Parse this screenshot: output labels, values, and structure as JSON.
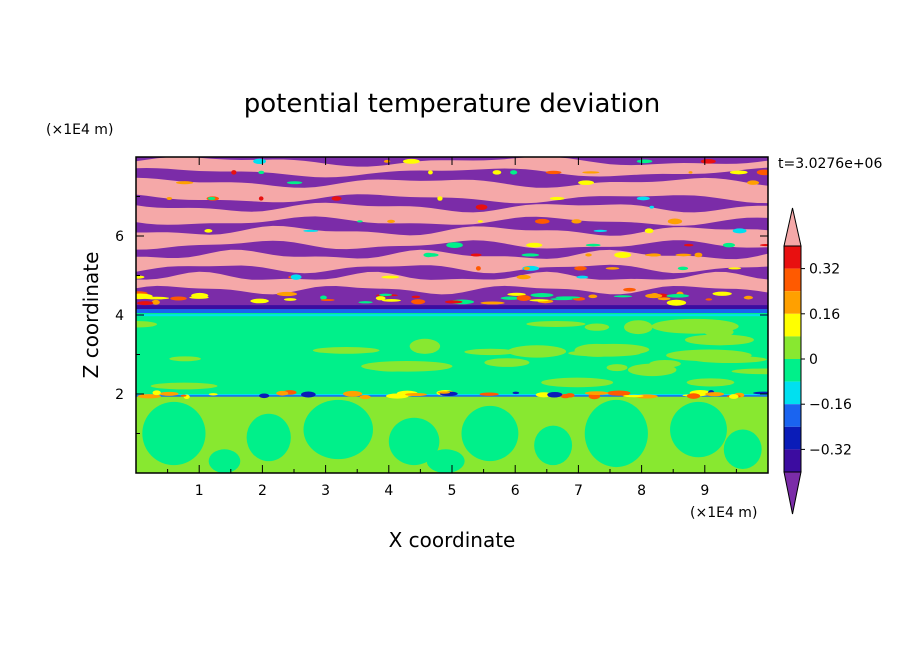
{
  "chart_data": {
    "type": "heatmap",
    "title": "potential temperature deviation",
    "xlabel": "X coordinate",
    "ylabel": "Z coordinate",
    "x_unit_label": "(×1E4 m)",
    "y_unit_label": "(×1E4 m)",
    "time_label": "t=3.0276e+06",
    "x_ticks": [
      "1",
      "2",
      "3",
      "4",
      "5",
      "6",
      "7",
      "8",
      "9"
    ],
    "y_ticks": [
      "2",
      "4",
      "6"
    ],
    "xlim": [
      0,
      10
    ],
    "ylim": [
      0,
      8
    ],
    "colorbar": {
      "tick_labels": [
        "0.32",
        "0.16",
        "0",
        "-0.16",
        "-0.32"
      ],
      "tick_values": [
        0.32,
        0.16,
        0,
        -0.16,
        -0.32
      ],
      "levels": [
        -0.4,
        -0.32,
        -0.24,
        -0.16,
        -0.08,
        0,
        0.08,
        0.16,
        0.24,
        0.32,
        0.4
      ],
      "colors": [
        "#7b2ca8",
        "#3c0ca0",
        "#0a1cb8",
        "#1a64f0",
        "#00e0f0",
        "#00f08a",
        "#88e830",
        "#ffff00",
        "#ffa000",
        "#ff5a00",
        "#e81010",
        "#f5a8a8"
      ],
      "extend": "both"
    },
    "regions": {
      "upper_layer": {
        "z_range": [
          4.2,
          8
        ],
        "dominant_levels": [
          "above 0.4",
          "below -0.4"
        ],
        "pattern": "horizontal alternating bands"
      },
      "middle_layer": {
        "z_range": [
          2,
          4
        ],
        "dominant_levels": [
          "0 to 0.08",
          "-0.08 to 0"
        ]
      },
      "lower_layer": {
        "z_range": [
          0,
          2
        ],
        "dominant_levels": [
          "0 to 0.08",
          "-0.08 to 0"
        ],
        "pattern": "convective cells"
      }
    }
  }
}
